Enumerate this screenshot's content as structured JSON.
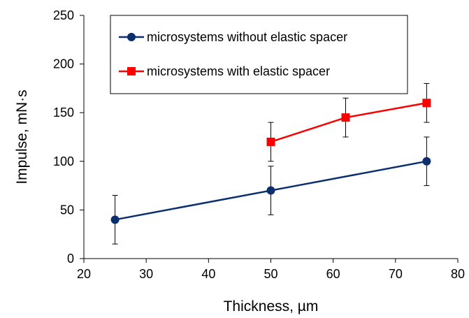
{
  "chart_data": {
    "type": "line",
    "xlabel": "Thickness, µm",
    "ylabel": "Impulse, mN·s",
    "xlim": [
      20,
      80
    ],
    "ylim": [
      0,
      250
    ],
    "xticks": [
      20,
      30,
      40,
      50,
      60,
      70,
      80
    ],
    "yticks": [
      0,
      50,
      100,
      150,
      200,
      250
    ],
    "grid": false,
    "legend_position": "top-right",
    "series": [
      {
        "name": "microsystems without elastic spacer",
        "color": "#0b2e6e",
        "marker": "circle",
        "points": [
          {
            "x": 25,
            "y": 40,
            "err": 25
          },
          {
            "x": 50,
            "y": 70,
            "err": 25
          },
          {
            "x": 75,
            "y": 100,
            "err": 25
          }
        ]
      },
      {
        "name": "microsystems with elastic spacer",
        "color": "#ff0000",
        "marker": "square",
        "points": [
          {
            "x": 50,
            "y": 120,
            "err": 20
          },
          {
            "x": 62,
            "y": 145,
            "err": 20
          },
          {
            "x": 75,
            "y": 160,
            "err": 20
          }
        ]
      }
    ]
  }
}
